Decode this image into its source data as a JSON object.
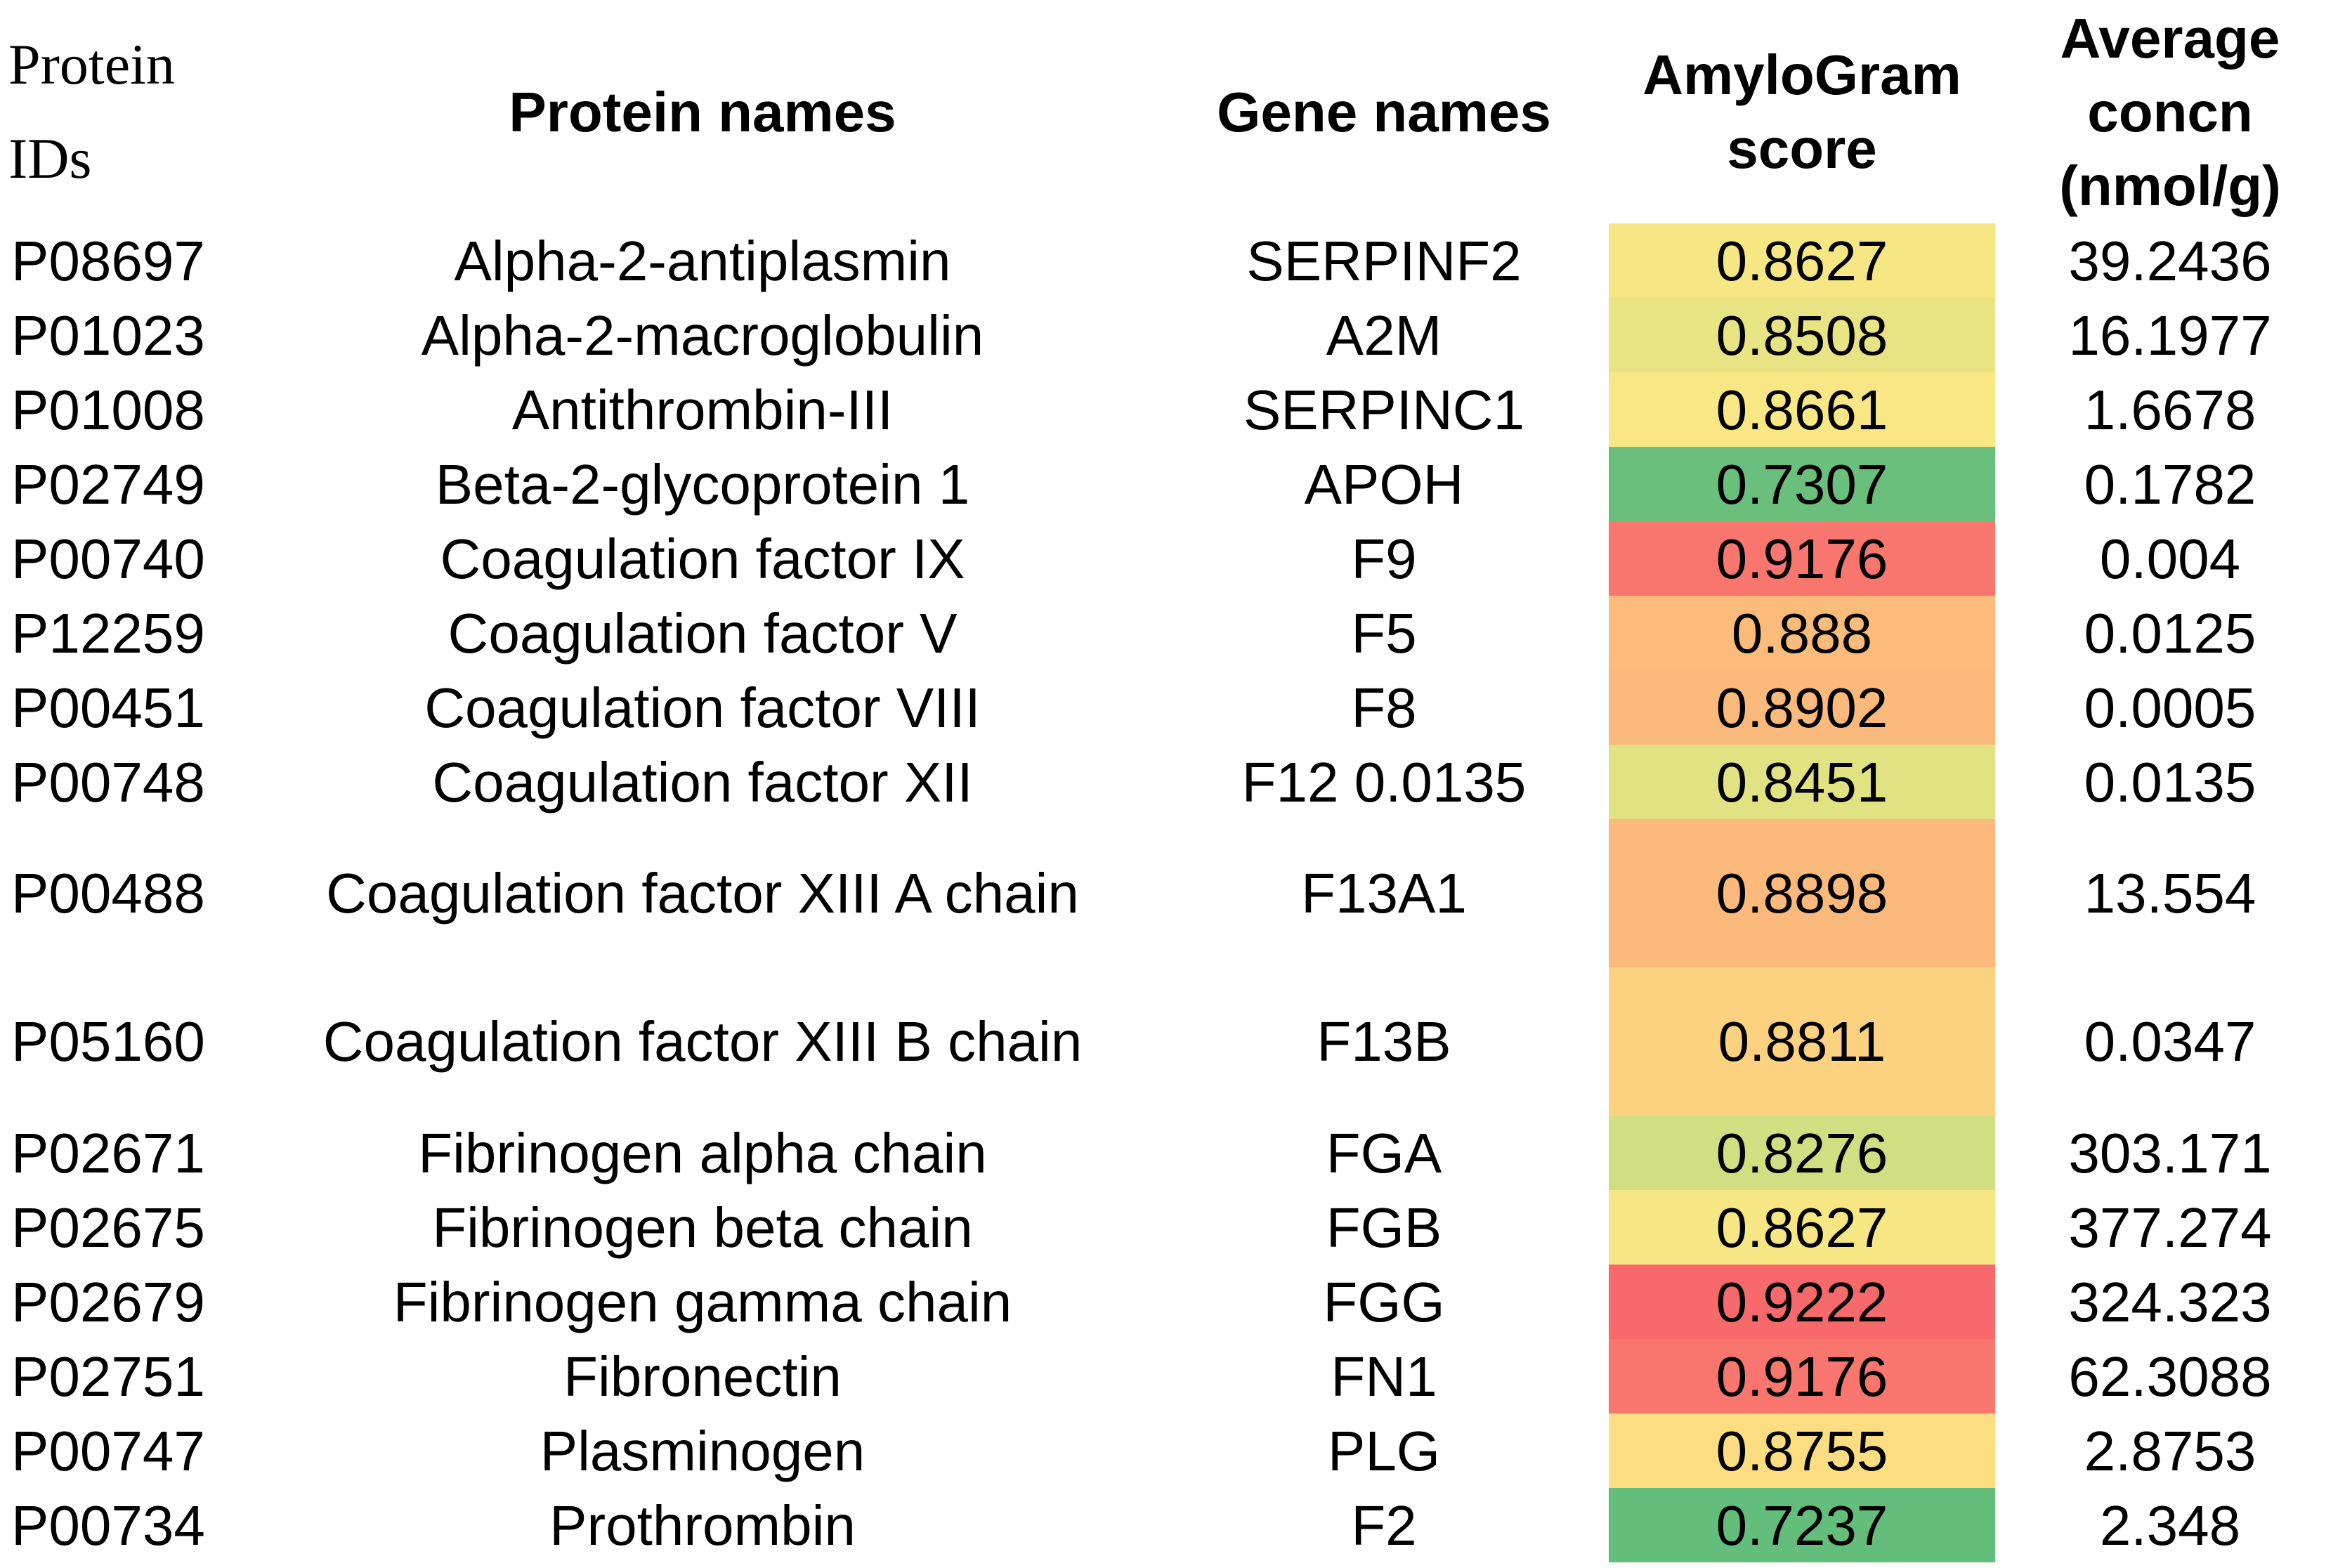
{
  "table": {
    "headers": {
      "protein_ids": "Protein IDs",
      "protein_names": "Protein names",
      "gene_names": "Gene names",
      "amylogram_score": "AmyloGram score",
      "average_concn": "Average concn (nmol/g)"
    },
    "rows": [
      {
        "id": "P08697",
        "name": "Alpha-2-antiplasmin",
        "gene": "SERPINF2",
        "score": "0.8627",
        "concn": "39.2436",
        "color": "#f6e784"
      },
      {
        "id": "P01023",
        "name": "Alpha-2-macroglobulin",
        "gene": "A2M",
        "score": "0.8508",
        "concn": "16.1977",
        "color": "#e8e383"
      },
      {
        "id": "P01008",
        "name": "Antithrombin-III",
        "gene": "SERPINC1",
        "score": "0.8661",
        "concn": "1.6678",
        "color": "#f8e784"
      },
      {
        "id": "P02749",
        "name": "Beta-2-glycoprotein 1",
        "gene": "APOH",
        "score": "0.7307",
        "concn": "0.1782",
        "color": "#69bf7b"
      },
      {
        "id": "P00740",
        "name": "Coagulation factor IX",
        "gene": "F9",
        "score": "0.9176",
        "concn": "0.004",
        "color": "#f8766e"
      },
      {
        "id": "P12259",
        "name": "Coagulation factor V",
        "gene": "F5",
        "score": "0.888",
        "concn": "0.0125",
        "color": "#fbbc7b"
      },
      {
        "id": "P00451",
        "name": "Coagulation factor VIII",
        "gene": "F8",
        "score": "0.8902",
        "concn": "0.0005",
        "color": "#fbb97b"
      },
      {
        "id": "P00748",
        "name": "Coagulation factor XII",
        "gene": "F12 0.0135",
        "score": "0.8451",
        "concn": "0.0135",
        "color": "#e1e383"
      },
      {
        "id": "P00488",
        "name": "Coagulation factor XIII A chain",
        "gene": "F13A1",
        "score": "0.8898",
        "concn": "13.554",
        "color": "#fbba7b"
      },
      {
        "id": "P05160",
        "name": "Coagulation factor XIII B chain",
        "gene": "F13B",
        "score": "0.8811",
        "concn": "0.0347",
        "color": "#fcd17f"
      },
      {
        "id": "P02671",
        "name": "Fibrinogen alpha chain",
        "gene": "FGA",
        "score": "0.8276",
        "concn": "303.171",
        "color": "#d1de82"
      },
      {
        "id": "P02675",
        "name": "Fibrinogen beta chain",
        "gene": "FGB",
        "score": "0.8627",
        "concn": "377.274",
        "color": "#f6e784"
      },
      {
        "id": "P02679",
        "name": "Fibrinogen gamma chain",
        "gene": "FGG",
        "score": "0.9222",
        "concn": "324.323",
        "color": "#f8696b"
      },
      {
        "id": "P02751",
        "name": "Fibronectin",
        "gene": "FN1",
        "score": "0.9176",
        "concn": "62.3088",
        "color": "#f8766e"
      },
      {
        "id": "P00747",
        "name": "Plasminogen",
        "gene": "PLG",
        "score": "0.8755",
        "concn": "2.8753",
        "color": "#fcdd82"
      },
      {
        "id": "P00734",
        "name": "Prothrombin",
        "gene": "F2",
        "score": "0.7237",
        "concn": "2.348",
        "color": "#63be7b"
      }
    ]
  }
}
